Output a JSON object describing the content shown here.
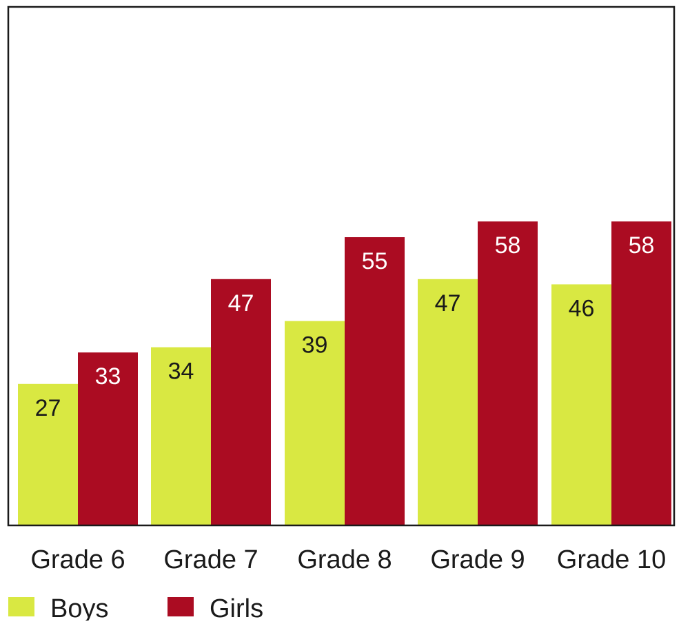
{
  "chart_data": {
    "type": "bar",
    "categories": [
      "Grade 6",
      "Grade 7",
      "Grade 8",
      "Grade 9",
      "Grade 10"
    ],
    "series": [
      {
        "name": "Boys",
        "values": [
          27,
          34,
          39,
          47,
          46
        ],
        "color": "#d9e842",
        "label_color": "#1a1a1a"
      },
      {
        "name": "Girls",
        "values": [
          33,
          47,
          55,
          58,
          58
        ],
        "color": "#ab0c22",
        "label_color": "#ffffff"
      }
    ],
    "title": "",
    "xlabel": "",
    "ylabel": "",
    "ylim": [
      0,
      100
    ],
    "grid": false,
    "legend_position": "bottom-left",
    "frame_color": "#1a1a1a"
  }
}
